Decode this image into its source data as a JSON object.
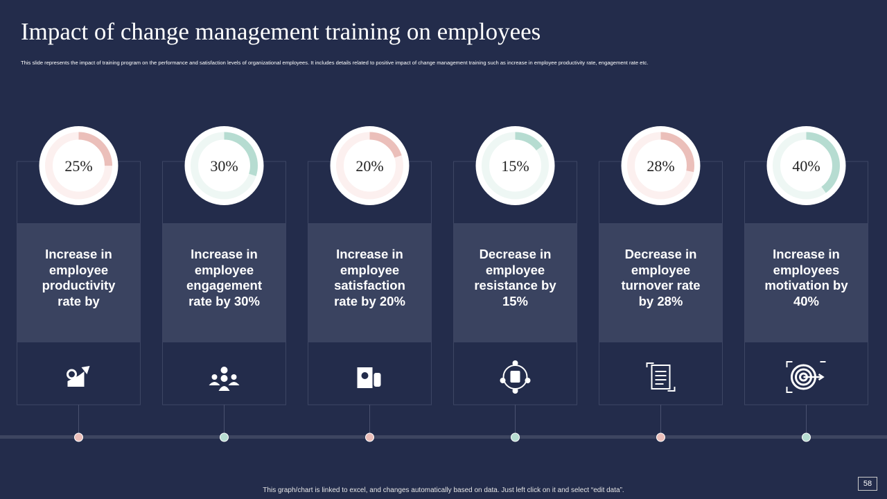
{
  "title": "Impact of change management training on employees",
  "subtitle": "This slide represents the impact of training program on the performance and satisfaction levels of organizational employees. It includes details related to positive impact of change management training such as increase in employee productivity rate, engagement rate etc.",
  "chart_data": [
    {
      "type": "donut",
      "values": [
        25
      ],
      "value_labels": [
        "25%"
      ],
      "ylim": [
        0,
        100
      ],
      "color": "#ebbfba",
      "track_color": "#fcf0ef"
    },
    {
      "type": "donut",
      "values": [
        30
      ],
      "value_labels": [
        "30%"
      ],
      "ylim": [
        0,
        100
      ],
      "color": "#b6dcd1",
      "track_color": "#eef7f4"
    },
    {
      "type": "donut",
      "values": [
        20
      ],
      "value_labels": [
        "20%"
      ],
      "ylim": [
        0,
        100
      ],
      "color": "#ebbfba",
      "track_color": "#fcf0ef"
    },
    {
      "type": "donut",
      "values": [
        15
      ],
      "value_labels": [
        "15%"
      ],
      "ylim": [
        0,
        100
      ],
      "color": "#b6dcd1",
      "track_color": "#eef7f4"
    },
    {
      "type": "donut",
      "values": [
        28
      ],
      "value_labels": [
        "28%"
      ],
      "ylim": [
        0,
        100
      ],
      "color": "#ebbfba",
      "track_color": "#fcf0ef"
    },
    {
      "type": "donut",
      "values": [
        40
      ],
      "value_labels": [
        "40%"
      ],
      "ylim": [
        0,
        100
      ],
      "color": "#b6dcd1",
      "track_color": "#eef7f4"
    }
  ],
  "cards": [
    {
      "text": "Increase in employee productivity rate by"
    },
    {
      "text": "Increase in employee engagement rate by 30%"
    },
    {
      "text": "Increase in employee satisfaction rate by 20%"
    },
    {
      "text": "Decrease in employee resistance by 15%"
    },
    {
      "text": "Decrease in employee turnover rate by 28%"
    },
    {
      "text": "Increase in employees motivation by 40%"
    }
  ],
  "footer": "This graph/chart is linked to excel, and changes automatically based on data. Just left click on it and select “edit data”.",
  "page_number": 58
}
